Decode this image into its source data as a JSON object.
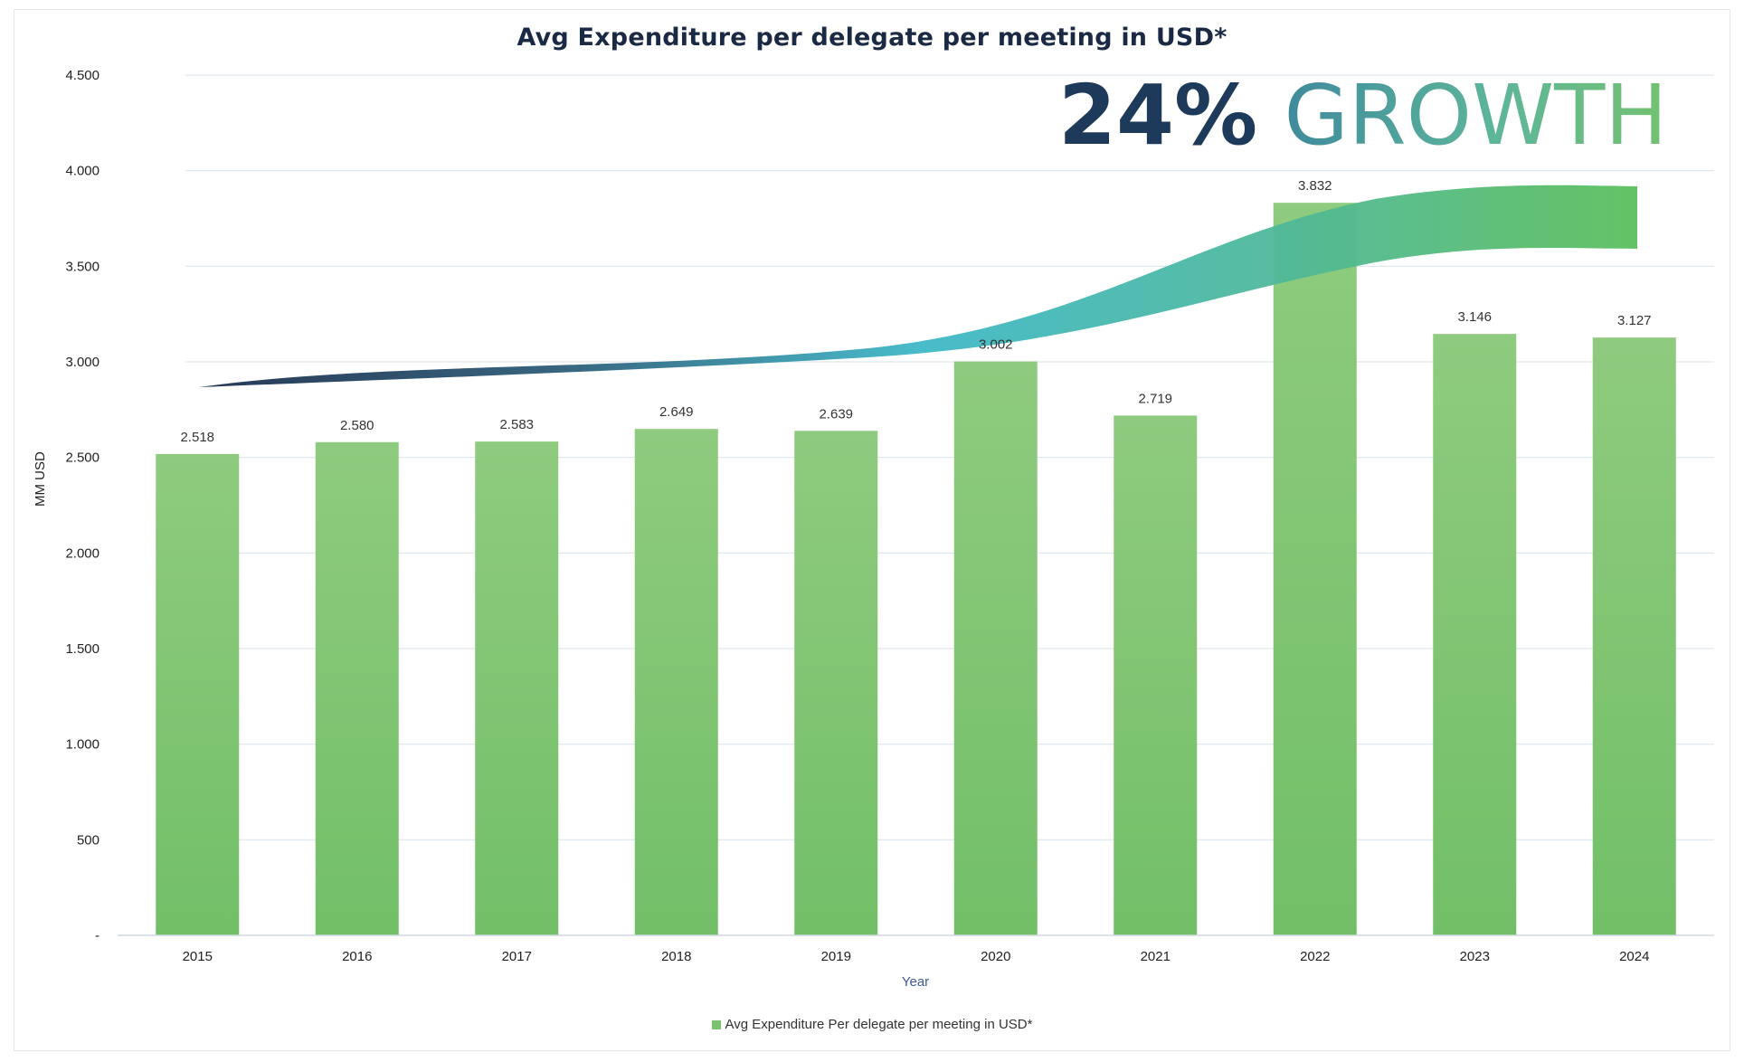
{
  "chart_data": {
    "type": "bar",
    "title": "Avg Expenditure per delegate per meeting in USD*",
    "xlabel": "Year",
    "ylabel": "MM USD",
    "categories": [
      "2015",
      "2016",
      "2017",
      "2018",
      "2019",
      "2020",
      "2021",
      "2022",
      "2023",
      "2024"
    ],
    "series": [
      {
        "name": "Avg Expenditure Per delegate per meeting in USD*",
        "values": [
          2518,
          2580,
          2583,
          2649,
          2639,
          3002,
          2719,
          3832,
          3146,
          3127
        ],
        "labels": [
          "2.518",
          "2.580",
          "2.583",
          "2.649",
          "2.639",
          "3.002",
          "2.719",
          "3.832",
          "3.146",
          "3.127"
        ]
      }
    ],
    "ylim": [
      0,
      4500
    ],
    "yticks": [
      0,
      500,
      1000,
      1500,
      2000,
      2500,
      3000,
      3500,
      4000,
      4500
    ],
    "ytick_labels": [
      "-",
      "500",
      "1.000",
      "1.500",
      "2.000",
      "2.500",
      "3.000",
      "3.500",
      "4.000",
      "4.500"
    ],
    "grid": true,
    "legend_position": "bottom",
    "bar_color": "#7cc36f",
    "annotation": {
      "value": "24%",
      "text": "GROWTH"
    }
  }
}
